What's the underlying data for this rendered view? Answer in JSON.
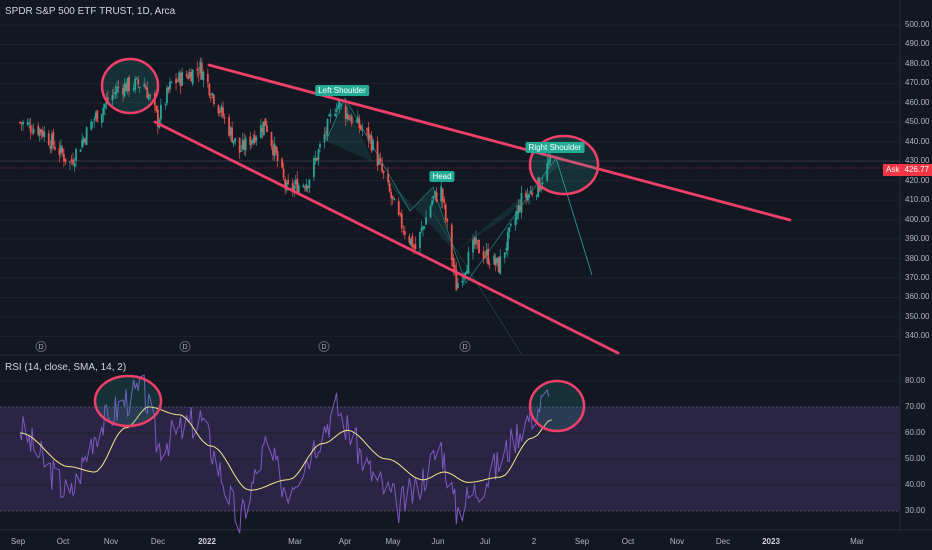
{
  "header": {
    "title": "SPDR S&P 500 ETF TRUST, 1D, Arca"
  },
  "rsi_panel": {
    "label": "RSI (14, close, SMA, 14, 2)"
  },
  "price_tag": {
    "label": "Ask",
    "value": "426.77"
  },
  "pattern_labels": {
    "left_shoulder": "Left Shoulder",
    "head": "Head",
    "right_shoulder": "Right Shoulder"
  },
  "dividend_marker": "D",
  "price_axis": {
    "ticks": [
      "500.00",
      "490.00",
      "480.00",
      "470.00",
      "460.00",
      "450.00",
      "440.00",
      "430.00",
      "420.00",
      "410.00",
      "400.00",
      "390.00",
      "380.00",
      "370.00",
      "360.00",
      "350.00",
      "340.00"
    ]
  },
  "rsi_axis": {
    "ticks": [
      "80.00",
      "70.00",
      "60.00",
      "50.00",
      "40.00",
      "30.00"
    ]
  },
  "time_axis": {
    "ticks": [
      "Sep",
      "Oct",
      "Nov",
      "Dec",
      "2022",
      "Mar",
      "Apr",
      "May",
      "Jun",
      "Jul",
      "2",
      "Sep",
      "Oct",
      "Nov",
      "Dec",
      "2023",
      "Mar"
    ]
  },
  "colors": {
    "background": "#131722",
    "up": "#26a69a",
    "down": "#ef5350",
    "trendline": "#f0406a",
    "rsi": "#7e57c2",
    "rsi_ma": "#f5e58c",
    "rsi_band": "#2a2544",
    "label_bg": "#22ab94"
  },
  "chart_data": [
    {
      "type": "candlestick",
      "title": "SPDR S&P 500 ETF TRUST, 1D, Arca",
      "ylim": [
        335,
        505
      ],
      "y_ticks": [
        500,
        490,
        480,
        470,
        460,
        450,
        440,
        430,
        420,
        410,
        400,
        390,
        380,
        370,
        360,
        350,
        340
      ],
      "current_price": 426.77,
      "annotations": [
        {
          "text": "Left Shoulder"
        },
        {
          "text": "Head"
        },
        {
          "text": "Right Shoulder"
        }
      ],
      "trendlines": [
        {
          "from": [
            "2021-12-31",
            481
          ],
          "to": [
            "2023-02-15",
            400
          ]
        },
        {
          "from": [
            "2021-12-06",
            450
          ],
          "to": [
            "2022-12-28",
            328
          ]
        }
      ],
      "approx_close_path": [
        [
          "2021-09-01",
          450
        ],
        [
          "2021-09-15",
          446
        ],
        [
          "2021-10-04",
          429
        ],
        [
          "2021-10-20",
          452
        ],
        [
          "2021-11-05",
          468
        ],
        [
          "2021-11-22",
          470
        ],
        [
          "2021-12-01",
          451
        ],
        [
          "2021-12-10",
          470
        ],
        [
          "2021-12-29",
          478
        ],
        [
          "2022-01-24",
          435
        ],
        [
          "2022-02-10",
          450
        ],
        [
          "2022-02-24",
          415
        ],
        [
          "2022-03-10",
          420
        ],
        [
          "2022-03-29",
          460
        ],
        [
          "2022-04-20",
          442
        ],
        [
          "2022-05-09",
          400
        ],
        [
          "2022-05-20",
          385
        ],
        [
          "2022-05-31",
          410
        ],
        [
          "2022-06-06",
          415
        ],
        [
          "2022-06-16",
          366
        ],
        [
          "2022-06-28",
          387
        ],
        [
          "2022-07-14",
          376
        ],
        [
          "2022-07-29",
          410
        ],
        [
          "2022-08-10",
          418
        ],
        [
          "2022-08-16",
          429
        ],
        [
          "2022-08-18",
          427
        ]
      ]
    },
    {
      "type": "line",
      "title": "RSI (14, close, SMA, 14, 2)",
      "ylim": [
        27,
        84
      ],
      "y_ticks": [
        80,
        70,
        60,
        50,
        40,
        30
      ],
      "band": [
        30,
        70
      ],
      "series": [
        {
          "name": "RSI",
          "x": [
            "2021-09-01",
            "2021-10-04",
            "2021-10-20",
            "2021-11-10",
            "2021-11-22",
            "2021-12-01",
            "2021-12-29",
            "2022-01-24",
            "2022-02-10",
            "2022-02-24",
            "2022-03-29",
            "2022-04-20",
            "2022-05-09",
            "2022-05-20",
            "2022-06-06",
            "2022-06-16",
            "2022-07-14",
            "2022-07-29",
            "2022-08-16"
          ],
          "values": [
            62,
            35,
            60,
            73,
            76,
            55,
            66,
            25,
            55,
            38,
            70,
            45,
            32,
            38,
            55,
            30,
            48,
            63,
            74
          ]
        },
        {
          "name": "SMA",
          "x": [
            "2021-09-01",
            "2021-10-04",
            "2021-10-20",
            "2021-11-10",
            "2021-11-25",
            "2021-12-15",
            "2022-01-05",
            "2022-01-31",
            "2022-02-25",
            "2022-03-20",
            "2022-04-05",
            "2022-05-01",
            "2022-05-25",
            "2022-06-08",
            "2022-06-24",
            "2022-07-15",
            "2022-08-05",
            "2022-08-18"
          ],
          "values": [
            60,
            47,
            45,
            62,
            70,
            67,
            55,
            38,
            42,
            56,
            61,
            50,
            42,
            45,
            41,
            43,
            58,
            65
          ]
        }
      ]
    }
  ]
}
